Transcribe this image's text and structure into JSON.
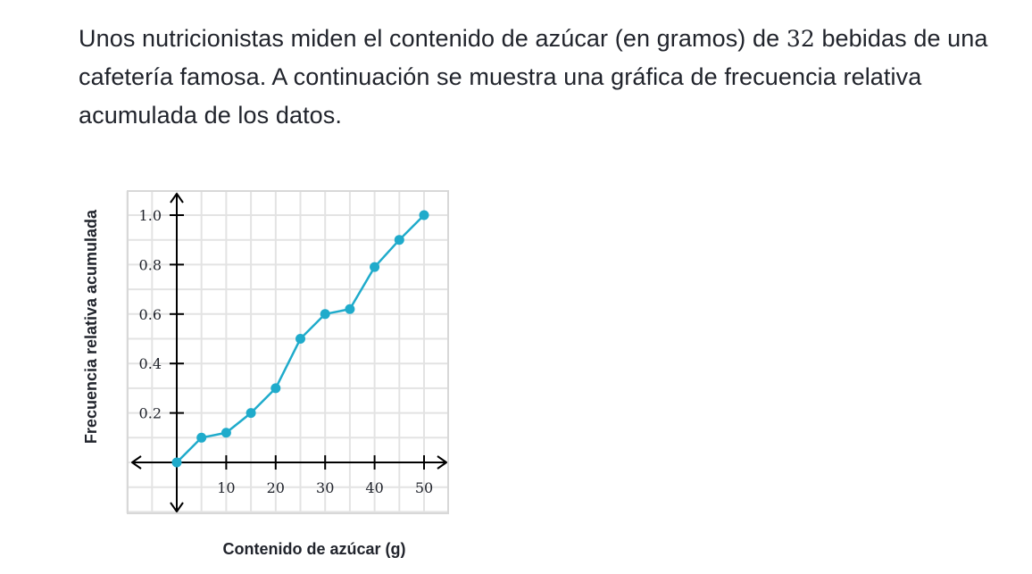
{
  "problem": {
    "text_before": "Unos nutricionistas miden el contenido de azúcar (en gramos) de ",
    "number": "32",
    "text_after": " bebidas de una cafetería famosa. A continuación se muestra una gráfica de frecuencia relativa acumulada de los datos."
  },
  "chart_data": {
    "type": "line",
    "title": "",
    "xlabel": "Contenido de azúcar (g)",
    "ylabel": "Frecuencia relativa acumulada",
    "x_ticks": [
      10,
      20,
      30,
      40,
      50
    ],
    "x_tick_labels": [
      "10",
      "20",
      "30",
      "40",
      "50"
    ],
    "y_ticks": [
      0.2,
      0.4,
      0.6,
      0.8,
      1.0
    ],
    "y_tick_labels": [
      "0.2",
      "0.4",
      "0.6",
      "0.8",
      "1.0"
    ],
    "xlim": [
      -10,
      55
    ],
    "ylim": [
      -0.2,
      1.1
    ],
    "grid": true,
    "series": [
      {
        "x": [
          0,
          5,
          10,
          15,
          20,
          25,
          30,
          35,
          40,
          45,
          50
        ],
        "y": [
          0,
          0.1,
          0.12,
          0.2,
          0.3,
          0.5,
          0.6,
          0.62,
          0.79,
          0.9,
          1.0
        ],
        "color": "#1fabcb"
      }
    ]
  }
}
